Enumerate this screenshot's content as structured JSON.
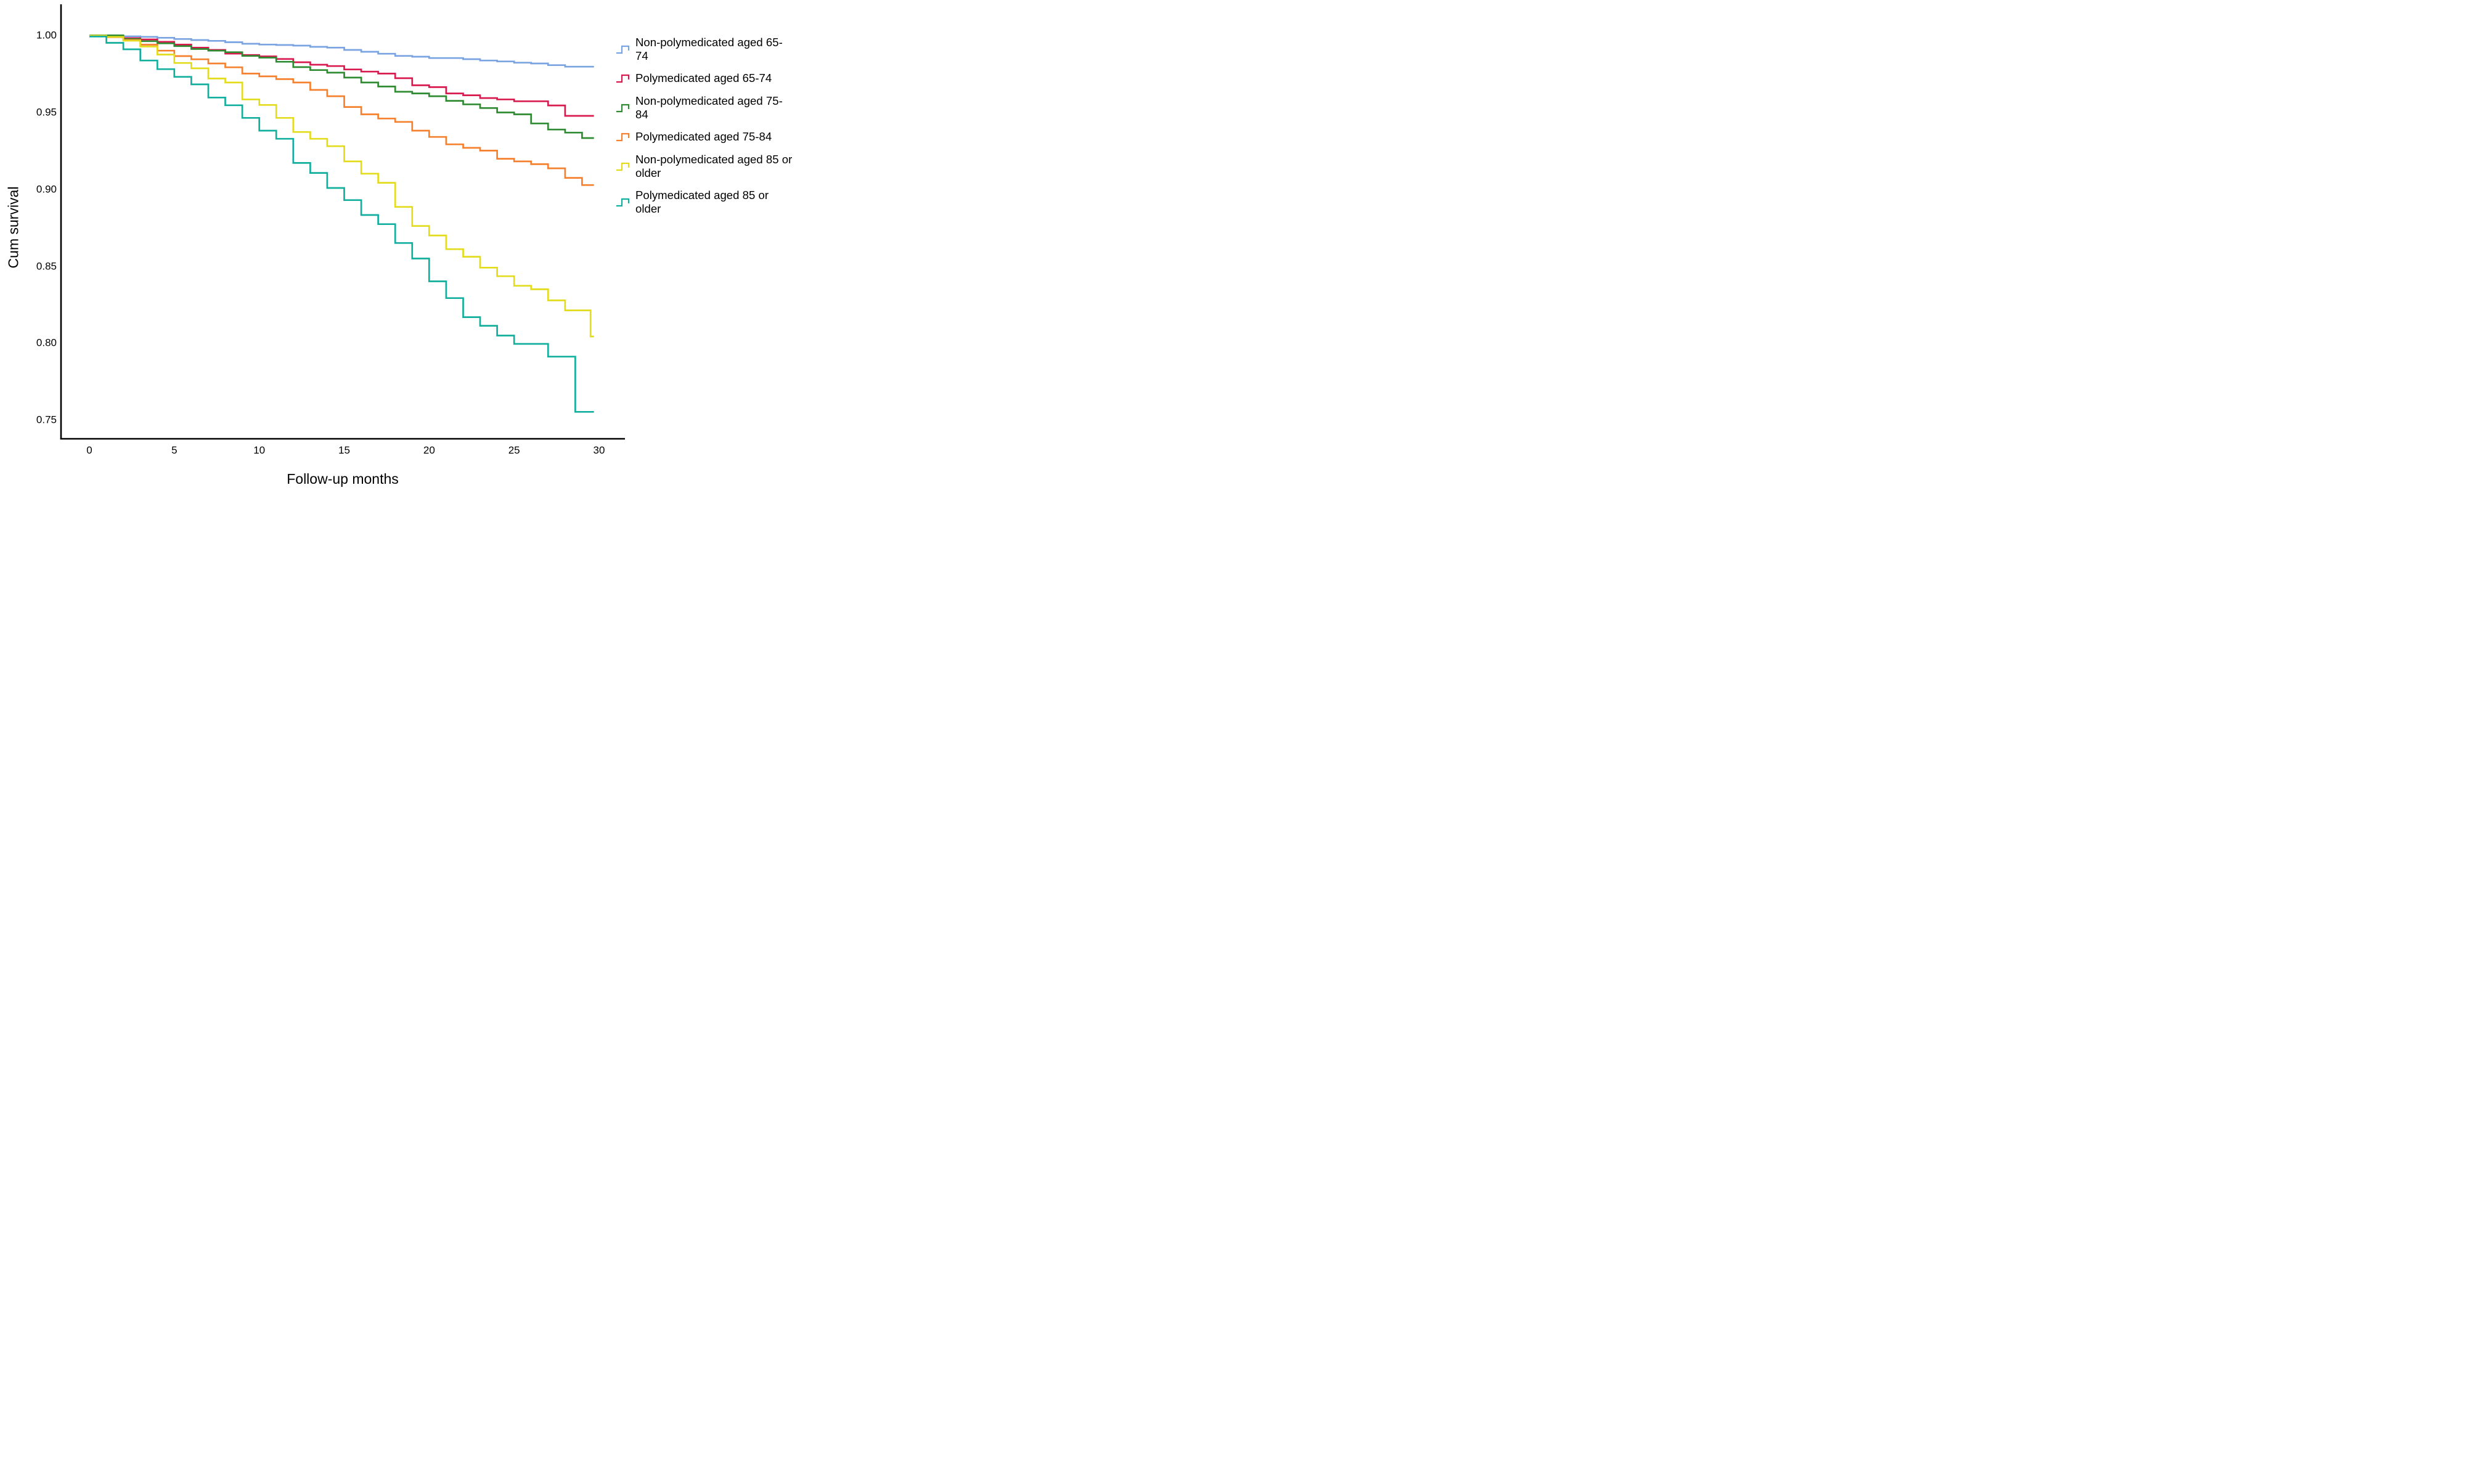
{
  "page": {
    "background": "#ffffff",
    "axis_color": "#000000"
  },
  "chart_data": {
    "type": "line",
    "subtype": "kaplan-meier-step",
    "title": "",
    "xlabel": "Follow-up months",
    "ylabel": "Cum survival",
    "xlim": [
      0,
      30
    ],
    "ylim": [
      0.75,
      1.0
    ],
    "x_ticks": [
      0,
      5,
      10,
      15,
      20,
      25,
      30
    ],
    "x_tick_labels": [
      "0",
      "5",
      "10",
      "15",
      "20",
      "25",
      "30"
    ],
    "y_ticks": [
      1.0,
      0.95,
      0.9,
      0.85,
      0.8,
      0.75
    ],
    "y_tick_labels": [
      "1.00",
      "0.95",
      "0.90",
      "0.85",
      "0.80",
      "0.75"
    ],
    "grid": false,
    "legend_position": "right",
    "x_end": 29.7,
    "series": [
      {
        "name": "Non-polymedicated aged 65-74",
        "legend_line1": "Non-polymedicated aged 65-",
        "legend_line2": "74",
        "color": "#7AA3E2",
        "points": [
          [
            0,
            1.0
          ],
          [
            1,
            0.9996
          ],
          [
            2,
            0.9993
          ],
          [
            3,
            0.999
          ],
          [
            4,
            0.9984
          ],
          [
            5,
            0.9976
          ],
          [
            6,
            0.9969
          ],
          [
            7,
            0.9964
          ],
          [
            8,
            0.9955
          ],
          [
            9,
            0.9945
          ],
          [
            10,
            0.994
          ],
          [
            11,
            0.9937
          ],
          [
            12,
            0.9933
          ],
          [
            13,
            0.9925
          ],
          [
            14,
            0.992
          ],
          [
            15,
            0.9905
          ],
          [
            16,
            0.9893
          ],
          [
            17,
            0.988
          ],
          [
            18,
            0.9866
          ],
          [
            19,
            0.9861
          ],
          [
            20,
            0.9852
          ],
          [
            22,
            0.9845
          ],
          [
            23,
            0.9836
          ],
          [
            24,
            0.983
          ],
          [
            25,
            0.9822
          ],
          [
            26,
            0.9817
          ],
          [
            27,
            0.9806
          ],
          [
            28,
            0.9796
          ]
        ]
      },
      {
        "name": "Polymedicated aged 65-74",
        "legend_line1": "Polymedicated aged 65-74",
        "legend_line2": "",
        "color": "#D81A4F",
        "points": [
          [
            0,
            0.9998
          ],
          [
            1,
            0.9992
          ],
          [
            2,
            0.9981
          ],
          [
            3,
            0.9973
          ],
          [
            4,
            0.9958
          ],
          [
            5,
            0.994
          ],
          [
            6,
            0.992
          ],
          [
            7,
            0.9905
          ],
          [
            8,
            0.9881
          ],
          [
            9,
            0.9872
          ],
          [
            10,
            0.9863
          ],
          [
            11,
            0.9846
          ],
          [
            12,
            0.9825
          ],
          [
            13,
            0.9809
          ],
          [
            14,
            0.98
          ],
          [
            15,
            0.9778
          ],
          [
            16,
            0.9764
          ],
          [
            17,
            0.9751
          ],
          [
            18,
            0.9721
          ],
          [
            19,
            0.9675
          ],
          [
            20,
            0.9663
          ],
          [
            21,
            0.9622
          ],
          [
            22,
            0.961
          ],
          [
            23,
            0.9592
          ],
          [
            24,
            0.9583
          ],
          [
            25,
            0.9571
          ],
          [
            27,
            0.9544
          ],
          [
            28,
            0.9476
          ]
        ]
      },
      {
        "name": "Non-polymedicated aged 75-84",
        "legend_line1": "Non-polymedicated aged 75-",
        "legend_line2": "84",
        "color": "#2E8B31",
        "points": [
          [
            0,
            1.0
          ],
          [
            2,
            0.9976
          ],
          [
            3,
            0.9962
          ],
          [
            4,
            0.9948
          ],
          [
            5,
            0.993
          ],
          [
            6,
            0.9911
          ],
          [
            7,
            0.99
          ],
          [
            8,
            0.989
          ],
          [
            9,
            0.9866
          ],
          [
            10,
            0.9855
          ],
          [
            11,
            0.9828
          ],
          [
            12,
            0.9793
          ],
          [
            13,
            0.9774
          ],
          [
            14,
            0.9757
          ],
          [
            15,
            0.9725
          ],
          [
            16,
            0.9693
          ],
          [
            17,
            0.9667
          ],
          [
            18,
            0.9633
          ],
          [
            19,
            0.9622
          ],
          [
            20,
            0.9604
          ],
          [
            21,
            0.9574
          ],
          [
            22,
            0.9551
          ],
          [
            23,
            0.9527
          ],
          [
            24,
            0.9498
          ],
          [
            25,
            0.9486
          ],
          [
            26,
            0.9427
          ],
          [
            27,
            0.9387
          ],
          [
            28,
            0.9367
          ],
          [
            29,
            0.9332
          ]
        ]
      },
      {
        "name": "Polymedicated aged 75-84",
        "legend_line1": "Polymedicated aged 75-84",
        "legend_line2": "",
        "color": "#F5812F",
        "points": [
          [
            0,
            0.9996
          ],
          [
            1,
            0.9988
          ],
          [
            2,
            0.997
          ],
          [
            3,
            0.9939
          ],
          [
            4,
            0.99
          ],
          [
            5,
            0.9865
          ],
          [
            6,
            0.9844
          ],
          [
            7,
            0.9817
          ],
          [
            8,
            0.9792
          ],
          [
            9,
            0.9751
          ],
          [
            10,
            0.9733
          ],
          [
            11,
            0.9715
          ],
          [
            12,
            0.9693
          ],
          [
            13,
            0.9645
          ],
          [
            14,
            0.9604
          ],
          [
            15,
            0.9534
          ],
          [
            16,
            0.9486
          ],
          [
            17,
            0.9459
          ],
          [
            18,
            0.9437
          ],
          [
            19,
            0.938
          ],
          [
            20,
            0.9339
          ],
          [
            21,
            0.9291
          ],
          [
            22,
            0.9268
          ],
          [
            23,
            0.925
          ],
          [
            24,
            0.9197
          ],
          [
            25,
            0.918
          ],
          [
            26,
            0.9162
          ],
          [
            27,
            0.9135
          ],
          [
            28,
            0.9073
          ],
          [
            29,
            0.9026
          ]
        ]
      },
      {
        "name": "Non-polymedicated aged 85 or older",
        "legend_line1": "Non-polymedicated aged 85 or",
        "legend_line2": "older",
        "color": "#E3DC1C",
        "points": [
          [
            0,
            0.9998
          ],
          [
            1,
            0.999
          ],
          [
            2,
            0.9965
          ],
          [
            3,
            0.9927
          ],
          [
            4,
            0.9875
          ],
          [
            5,
            0.982
          ],
          [
            6,
            0.9785
          ],
          [
            7,
            0.9719
          ],
          [
            8,
            0.9693
          ],
          [
            9,
            0.9583
          ],
          [
            10,
            0.9547
          ],
          [
            11,
            0.9463
          ],
          [
            12,
            0.9371
          ],
          [
            13,
            0.9327
          ],
          [
            14,
            0.9279
          ],
          [
            15,
            0.918
          ],
          [
            16,
            0.91
          ],
          [
            17,
            0.9041
          ],
          [
            18,
            0.8884
          ],
          [
            19,
            0.876
          ],
          [
            20,
            0.8698
          ],
          [
            21,
            0.8609
          ],
          [
            22,
            0.856
          ],
          [
            23,
            0.8489
          ],
          [
            24,
            0.8433
          ],
          [
            25,
            0.8371
          ],
          [
            26,
            0.8348
          ],
          [
            27,
            0.8276
          ],
          [
            28,
            0.8211
          ],
          [
            29.5,
            0.8041
          ]
        ]
      },
      {
        "name": "Polymedicated aged 85 or older",
        "legend_line1": "Polymedicated aged 85 or",
        "legend_line2": "older",
        "color": "#12AE9E",
        "points": [
          [
            0,
            0.9992
          ],
          [
            1,
            0.9951
          ],
          [
            2,
            0.9909
          ],
          [
            3,
            0.9836
          ],
          [
            4,
            0.978
          ],
          [
            5,
            0.973
          ],
          [
            6,
            0.9681
          ],
          [
            7,
            0.9595
          ],
          [
            8,
            0.9545
          ],
          [
            9,
            0.9463
          ],
          [
            10,
            0.938
          ],
          [
            11,
            0.9327
          ],
          [
            12,
            0.917
          ],
          [
            13,
            0.9105
          ],
          [
            14,
            0.9007
          ],
          [
            15,
            0.8928
          ],
          [
            16,
            0.8831
          ],
          [
            17,
            0.8772
          ],
          [
            18,
            0.8649
          ],
          [
            19,
            0.8548
          ],
          [
            20,
            0.84
          ],
          [
            21,
            0.8291
          ],
          [
            22,
            0.8167
          ],
          [
            23,
            0.8111
          ],
          [
            24,
            0.8047
          ],
          [
            25,
            0.7993
          ],
          [
            27,
            0.791
          ],
          [
            28.6,
            0.7551
          ]
        ]
      }
    ]
  }
}
